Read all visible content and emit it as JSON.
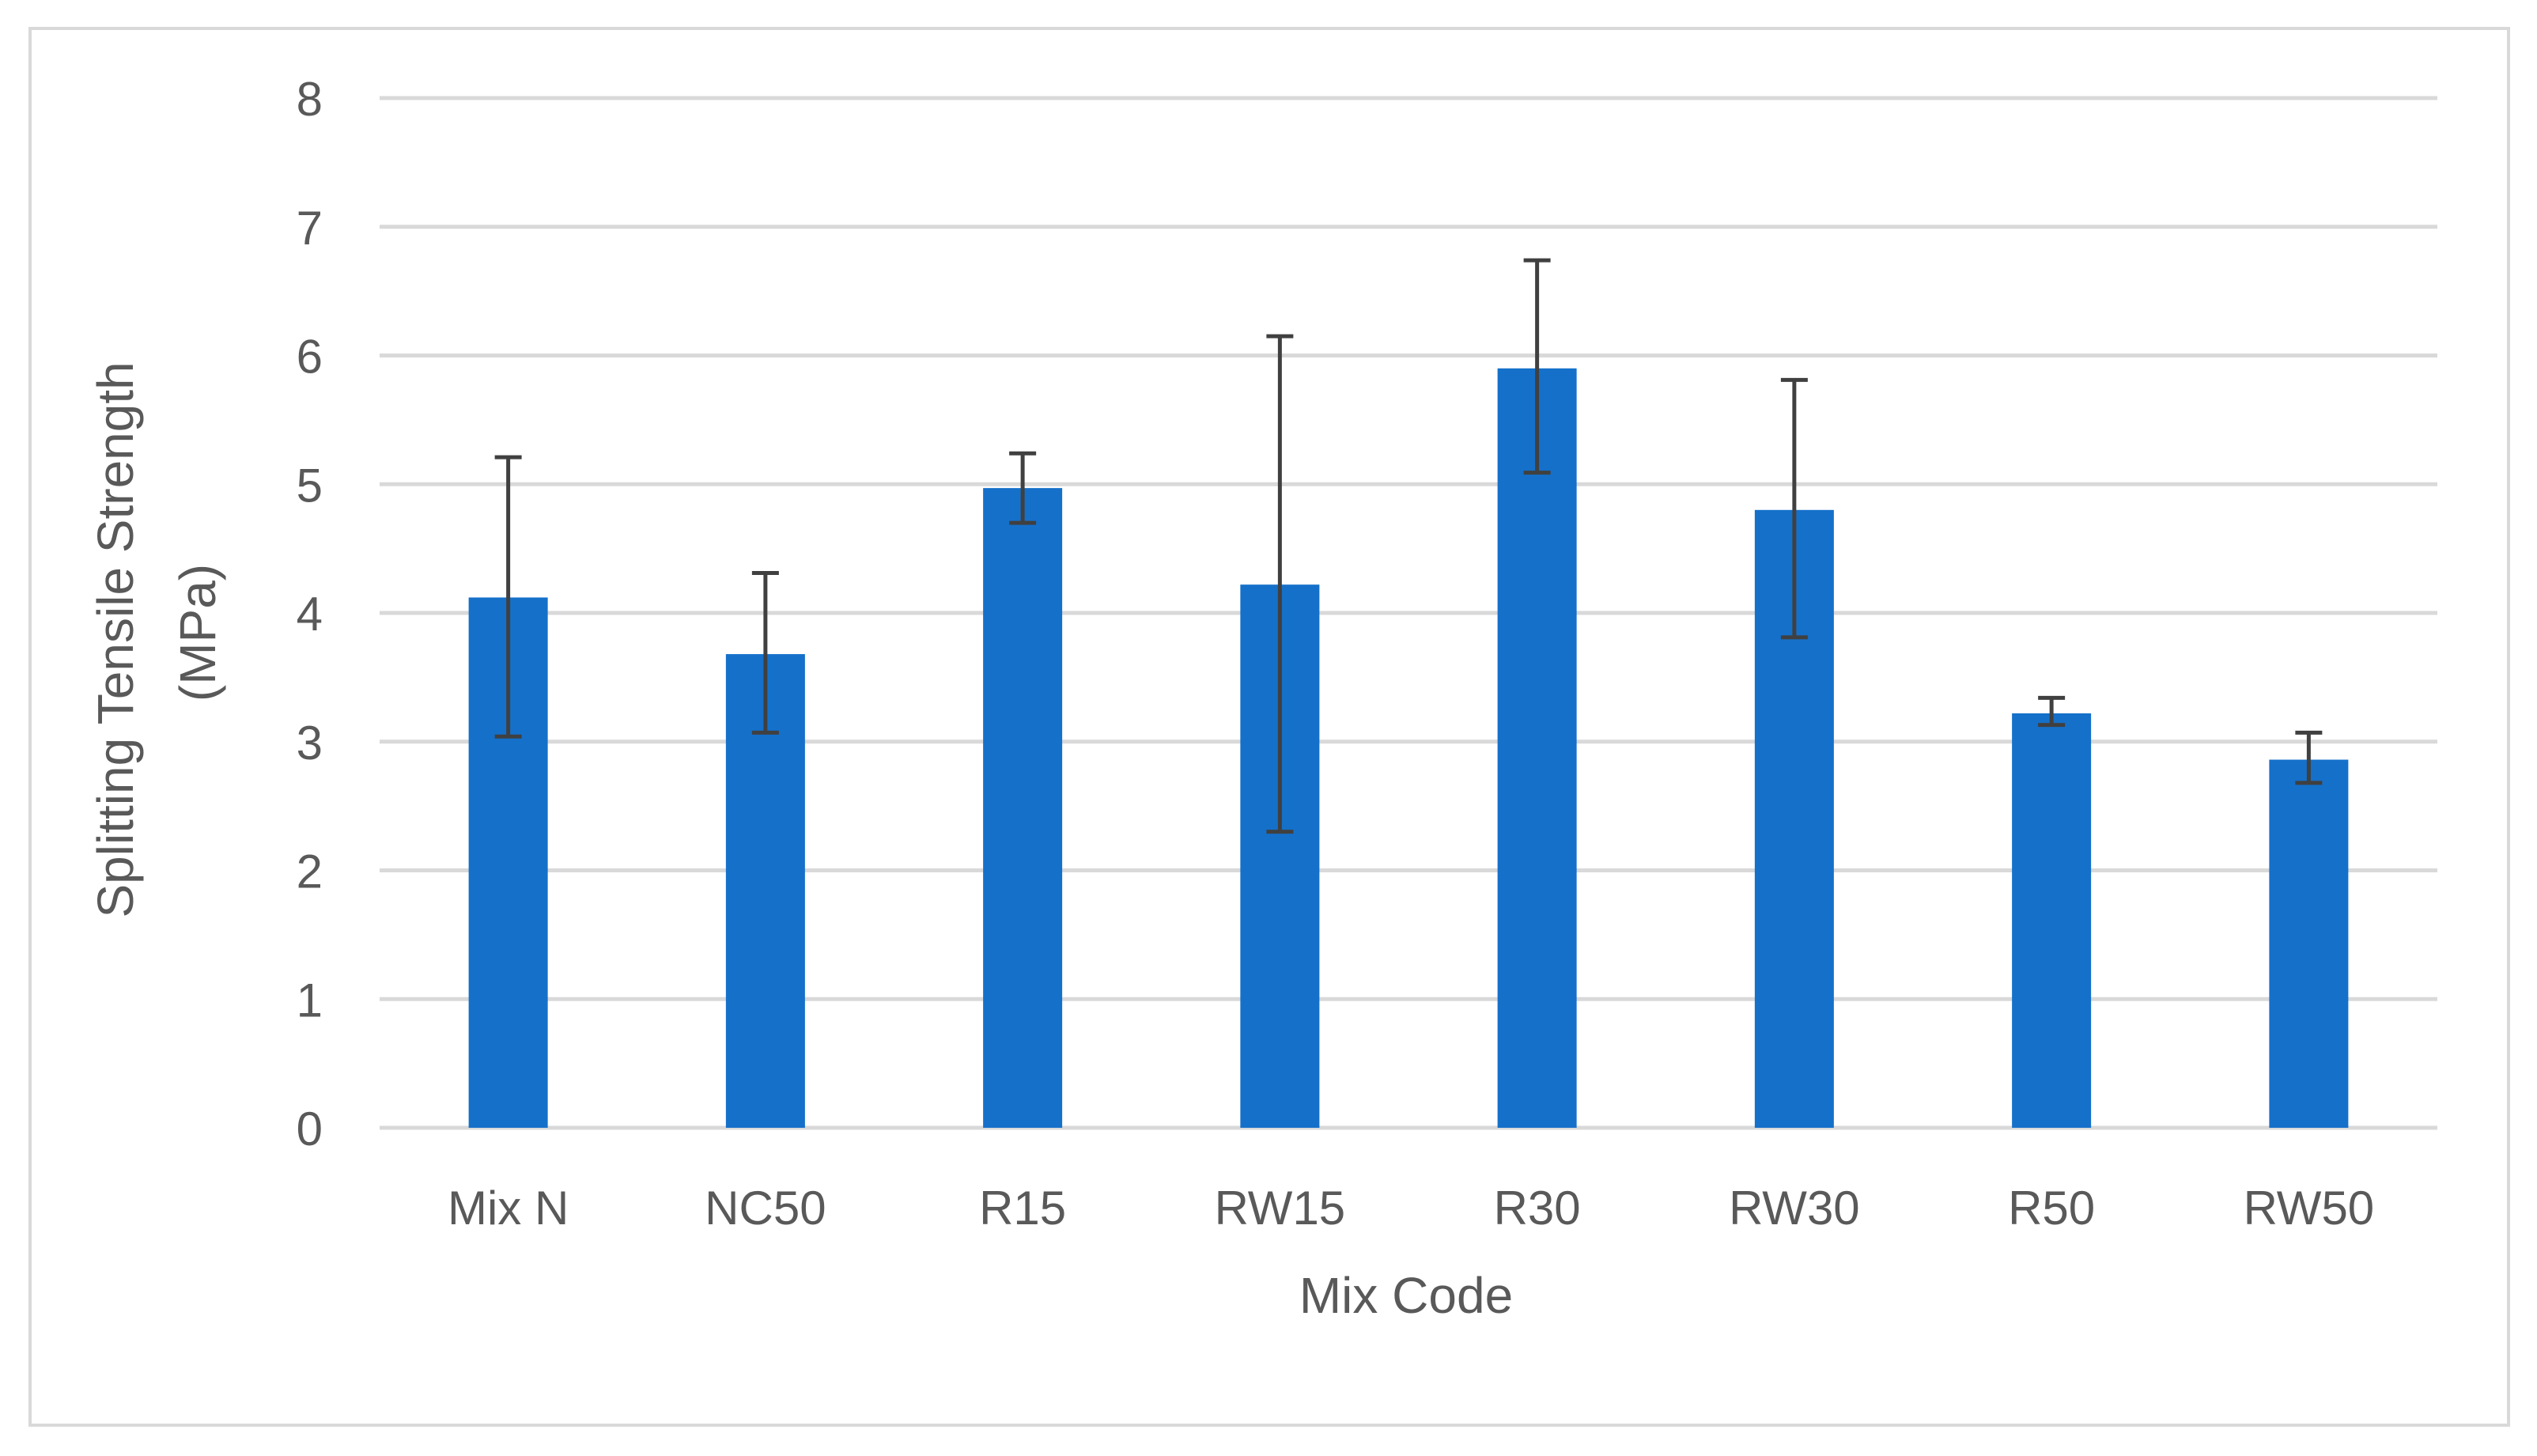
{
  "chart_data": {
    "type": "bar",
    "title": "",
    "xlabel": "Mix Code",
    "ylabel": [
      "Splitting Tensile Strength",
      "(MPa)"
    ],
    "categories": [
      "Mix N",
      "NC50",
      "R15",
      "RW15",
      "R30",
      "RW30",
      "R50",
      "RW50"
    ],
    "series": [
      {
        "values": [
          4.12,
          3.68,
          4.97,
          4.22,
          5.9,
          4.8,
          3.22,
          2.86
        ],
        "error_low": [
          3.04,
          3.07,
          4.7,
          2.3,
          5.09,
          3.81,
          3.13,
          2.68
        ],
        "error_high": [
          5.21,
          4.31,
          5.24,
          6.15,
          6.74,
          5.81,
          3.34,
          3.07
        ]
      }
    ],
    "ylim": [
      0,
      8
    ],
    "yticks": [
      "0",
      "1",
      "2",
      "3",
      "4",
      "5",
      "6",
      "7",
      "8"
    ],
    "grid": true,
    "legend": "none",
    "colors": {
      "bar": "#1570CA",
      "errorbar": "#404040",
      "grid": "#d9d9d9",
      "text": "#595959"
    }
  }
}
